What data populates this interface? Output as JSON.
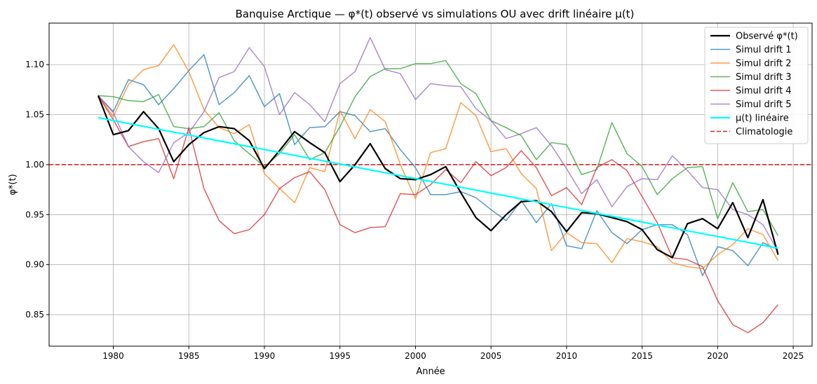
{
  "chart_data": {
    "type": "line",
    "title": "Banquise Arctique — φ*(t) observé vs simulations OU avec drift linéaire μ(t)",
    "xlabel": "Année",
    "ylabel": "φ*(t)",
    "xlim": [
      1975.75,
      2026.25
    ],
    "ylim": [
      0.8185,
      1.1415
    ],
    "xticks": [
      1980,
      1985,
      1990,
      1995,
      2000,
      2005,
      2010,
      2015,
      2020,
      2025
    ],
    "xtick_labels": [
      "1980",
      "1985",
      "1990",
      "1995",
      "2000",
      "2005",
      "2010",
      "2015",
      "2020",
      "2025"
    ],
    "yticks": [
      0.85,
      0.9,
      0.95,
      1.0,
      1.05,
      1.1
    ],
    "ytick_labels": [
      "0.85",
      "0.90",
      "0.95",
      "1.00",
      "1.05",
      "1.10"
    ],
    "grid": true,
    "legend_position": "top-right",
    "x": [
      1979,
      1980,
      1981,
      1982,
      1983,
      1984,
      1985,
      1986,
      1987,
      1988,
      1989,
      1990,
      1991,
      1992,
      1993,
      1994,
      1995,
      1996,
      1997,
      1998,
      1999,
      2000,
      2001,
      2002,
      2003,
      2004,
      2005,
      2006,
      2007,
      2008,
      2009,
      2010,
      2011,
      2012,
      2013,
      2014,
      2015,
      2016,
      2017,
      2018,
      2019,
      2020,
      2021,
      2022,
      2023,
      2024
    ],
    "series": [
      {
        "name": "Observé φ*(t)",
        "color": "#000000",
        "width": 2.2,
        "opacity": 1,
        "dash": "",
        "values": [
          1.069,
          1.03,
          1.034,
          1.053,
          1.036,
          1.003,
          1.02,
          1.032,
          1.038,
          1.036,
          1.024,
          0.996,
          1.014,
          1.033,
          1.022,
          1.012,
          0.983,
          1.0,
          1.021,
          0.996,
          0.986,
          0.985,
          0.99,
          0.998,
          0.972,
          0.947,
          0.934,
          0.95,
          0.963,
          0.964,
          0.953,
          0.933,
          0.952,
          0.951,
          0.947,
          0.943,
          0.935,
          0.915,
          0.907,
          0.941,
          0.946,
          0.936,
          0.962,
          0.927,
          0.965,
          0.91
        ]
      },
      {
        "name": "Simul drift 1",
        "color": "#1f77b4",
        "width": 1.5,
        "opacity": 0.75,
        "dash": "",
        "values": [
          1.069,
          1.053,
          1.085,
          1.08,
          1.06,
          1.076,
          1.094,
          1.11,
          1.06,
          1.072,
          1.089,
          1.058,
          1.071,
          1.02,
          1.037,
          1.038,
          1.053,
          1.049,
          1.033,
          1.036,
          1.015,
          0.997,
          0.97,
          0.97,
          0.973,
          0.967,
          0.955,
          0.944,
          0.964,
          0.942,
          0.961,
          0.919,
          0.916,
          0.954,
          0.932,
          0.921,
          0.935,
          0.94,
          0.94,
          0.93,
          0.889,
          0.918,
          0.914,
          0.899,
          0.922,
          0.915
        ]
      },
      {
        "name": "Simul drift 2",
        "color": "#ff7f0e",
        "width": 1.5,
        "opacity": 0.75,
        "dash": "",
        "values": [
          1.069,
          1.048,
          1.08,
          1.095,
          1.099,
          1.12,
          1.093,
          1.055,
          1.037,
          1.031,
          1.04,
          0.991,
          0.976,
          0.962,
          0.997,
          0.993,
          1.054,
          1.026,
          1.055,
          1.043,
          1.0,
          0.966,
          1.012,
          1.016,
          1.062,
          1.049,
          1.013,
          1.016,
          0.991,
          0.976,
          0.914,
          0.932,
          0.922,
          0.921,
          0.902,
          0.926,
          0.923,
          0.918,
          0.902,
          0.898,
          0.896,
          0.91,
          0.92,
          0.936,
          0.93,
          0.904
        ]
      },
      {
        "name": "Simul drift 3",
        "color": "#2ca02c",
        "width": 1.5,
        "opacity": 0.75,
        "dash": "",
        "values": [
          1.069,
          1.068,
          1.064,
          1.063,
          1.07,
          1.038,
          1.036,
          1.038,
          1.052,
          1.024,
          1.011,
          0.998,
          1.011,
          1.03,
          1.005,
          1.012,
          1.038,
          1.068,
          1.088,
          1.096,
          1.096,
          1.101,
          1.101,
          1.104,
          1.081,
          1.071,
          1.044,
          1.037,
          1.029,
          1.005,
          1.022,
          1.02,
          0.99,
          0.995,
          1.042,
          1.011,
          0.998,
          0.97,
          0.986,
          0.997,
          0.998,
          0.946,
          0.982,
          0.953,
          0.955,
          0.929
        ]
      },
      {
        "name": "Simul drift 4",
        "color": "#d62728",
        "width": 1.5,
        "opacity": 0.75,
        "dash": "",
        "values": [
          1.069,
          1.045,
          1.018,
          1.023,
          1.026,
          0.986,
          1.037,
          0.976,
          0.944,
          0.931,
          0.935,
          0.95,
          0.976,
          0.987,
          0.993,
          0.975,
          0.94,
          0.932,
          0.937,
          0.938,
          0.971,
          0.97,
          0.98,
          0.995,
          0.982,
          1.003,
          0.989,
          0.997,
          1.014,
          0.997,
          0.969,
          0.977,
          0.96,
          0.997,
          1.005,
          0.994,
          0.968,
          0.942,
          0.907,
          0.905,
          0.898,
          0.864,
          0.84,
          0.832,
          0.842,
          0.86
        ]
      },
      {
        "name": "Simul drift 5",
        "color": "#9467bd",
        "width": 1.5,
        "opacity": 0.75,
        "dash": "",
        "values": [
          1.069,
          1.052,
          1.018,
          1.003,
          0.992,
          1.022,
          1.032,
          1.053,
          1.087,
          1.093,
          1.117,
          1.098,
          1.05,
          1.072,
          1.06,
          1.043,
          1.081,
          1.093,
          1.127,
          1.095,
          1.091,
          1.065,
          1.081,
          1.079,
          1.078,
          1.056,
          1.044,
          1.026,
          1.031,
          1.037,
          1.019,
          0.996,
          0.971,
          0.985,
          0.958,
          0.978,
          0.986,
          0.985,
          1.009,
          0.994,
          0.977,
          0.975,
          0.955,
          0.95,
          0.94,
          0.913
        ]
      },
      {
        "name": "μ(t) linéaire",
        "color": "#00ffff",
        "width": 2.2,
        "opacity": 1,
        "dash": "",
        "values": [
          1.047,
          1.0441,
          1.0412,
          1.0383,
          1.0354,
          1.0325,
          1.0296,
          1.0267,
          1.0238,
          1.0209,
          1.018,
          1.0151,
          1.0122,
          1.0093,
          1.0064,
          1.0035,
          1.0006,
          0.9977,
          0.9948,
          0.9919,
          0.989,
          0.9861,
          0.9832,
          0.9803,
          0.9774,
          0.9745,
          0.9716,
          0.9687,
          0.9658,
          0.9629,
          0.96,
          0.9571,
          0.9542,
          0.9513,
          0.9484,
          0.9455,
          0.9426,
          0.9397,
          0.9368,
          0.9339,
          0.931,
          0.9281,
          0.9252,
          0.9223,
          0.9194,
          0.9165
        ]
      }
    ],
    "hline": {
      "name": "Climatologie",
      "y": 1.0,
      "color": "#d62728"
    }
  }
}
